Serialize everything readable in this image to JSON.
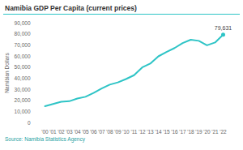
{
  "chart_data": {
    "type": "line",
    "title": "Namibia GDP Per Capita (current prices)",
    "y_label": "Namibian Dollars",
    "source": "Source: Namibia Statistics Agency",
    "categories": [
      "'00",
      "'01",
      "'02",
      "'03",
      "'04",
      "'05",
      "'06",
      "'07",
      "'08",
      "'09",
      "'10",
      "'11",
      "'12",
      "'13",
      "'14",
      "'15",
      "'16",
      "'17",
      "'18",
      "'19",
      "'20",
      "'21",
      "'22"
    ],
    "values": [
      15000,
      17000,
      19000,
      19500,
      22000,
      23500,
      27000,
      31000,
      34500,
      36500,
      39500,
      43000,
      50000,
      53500,
      60000,
      64000,
      67500,
      72000,
      75000,
      74000,
      70000,
      72500,
      79631
    ],
    "color": "#2ec4c6",
    "annotations": [
      {
        "text": "79,631",
        "category": "'22",
        "value": 79631
      }
    ],
    "ylim": [
      0,
      90000
    ],
    "yticks": [
      0,
      {
        "value": 10000,
        "label": "10,000"
      },
      {
        "value": 20000,
        "label": "20,000"
      },
      {
        "value": 30000,
        "label": "30,000"
      },
      {
        "value": 40000,
        "label": "40,000"
      },
      {
        "value": 50000,
        "label": "50,000"
      },
      {
        "value": 60000,
        "label": "60,000"
      },
      {
        "value": 70000,
        "label": "70,000"
      },
      {
        "value": 80000,
        "label": "80,000"
      },
      {
        "value": 90000,
        "label": "90,000"
      }
    ],
    "grid": false
  }
}
